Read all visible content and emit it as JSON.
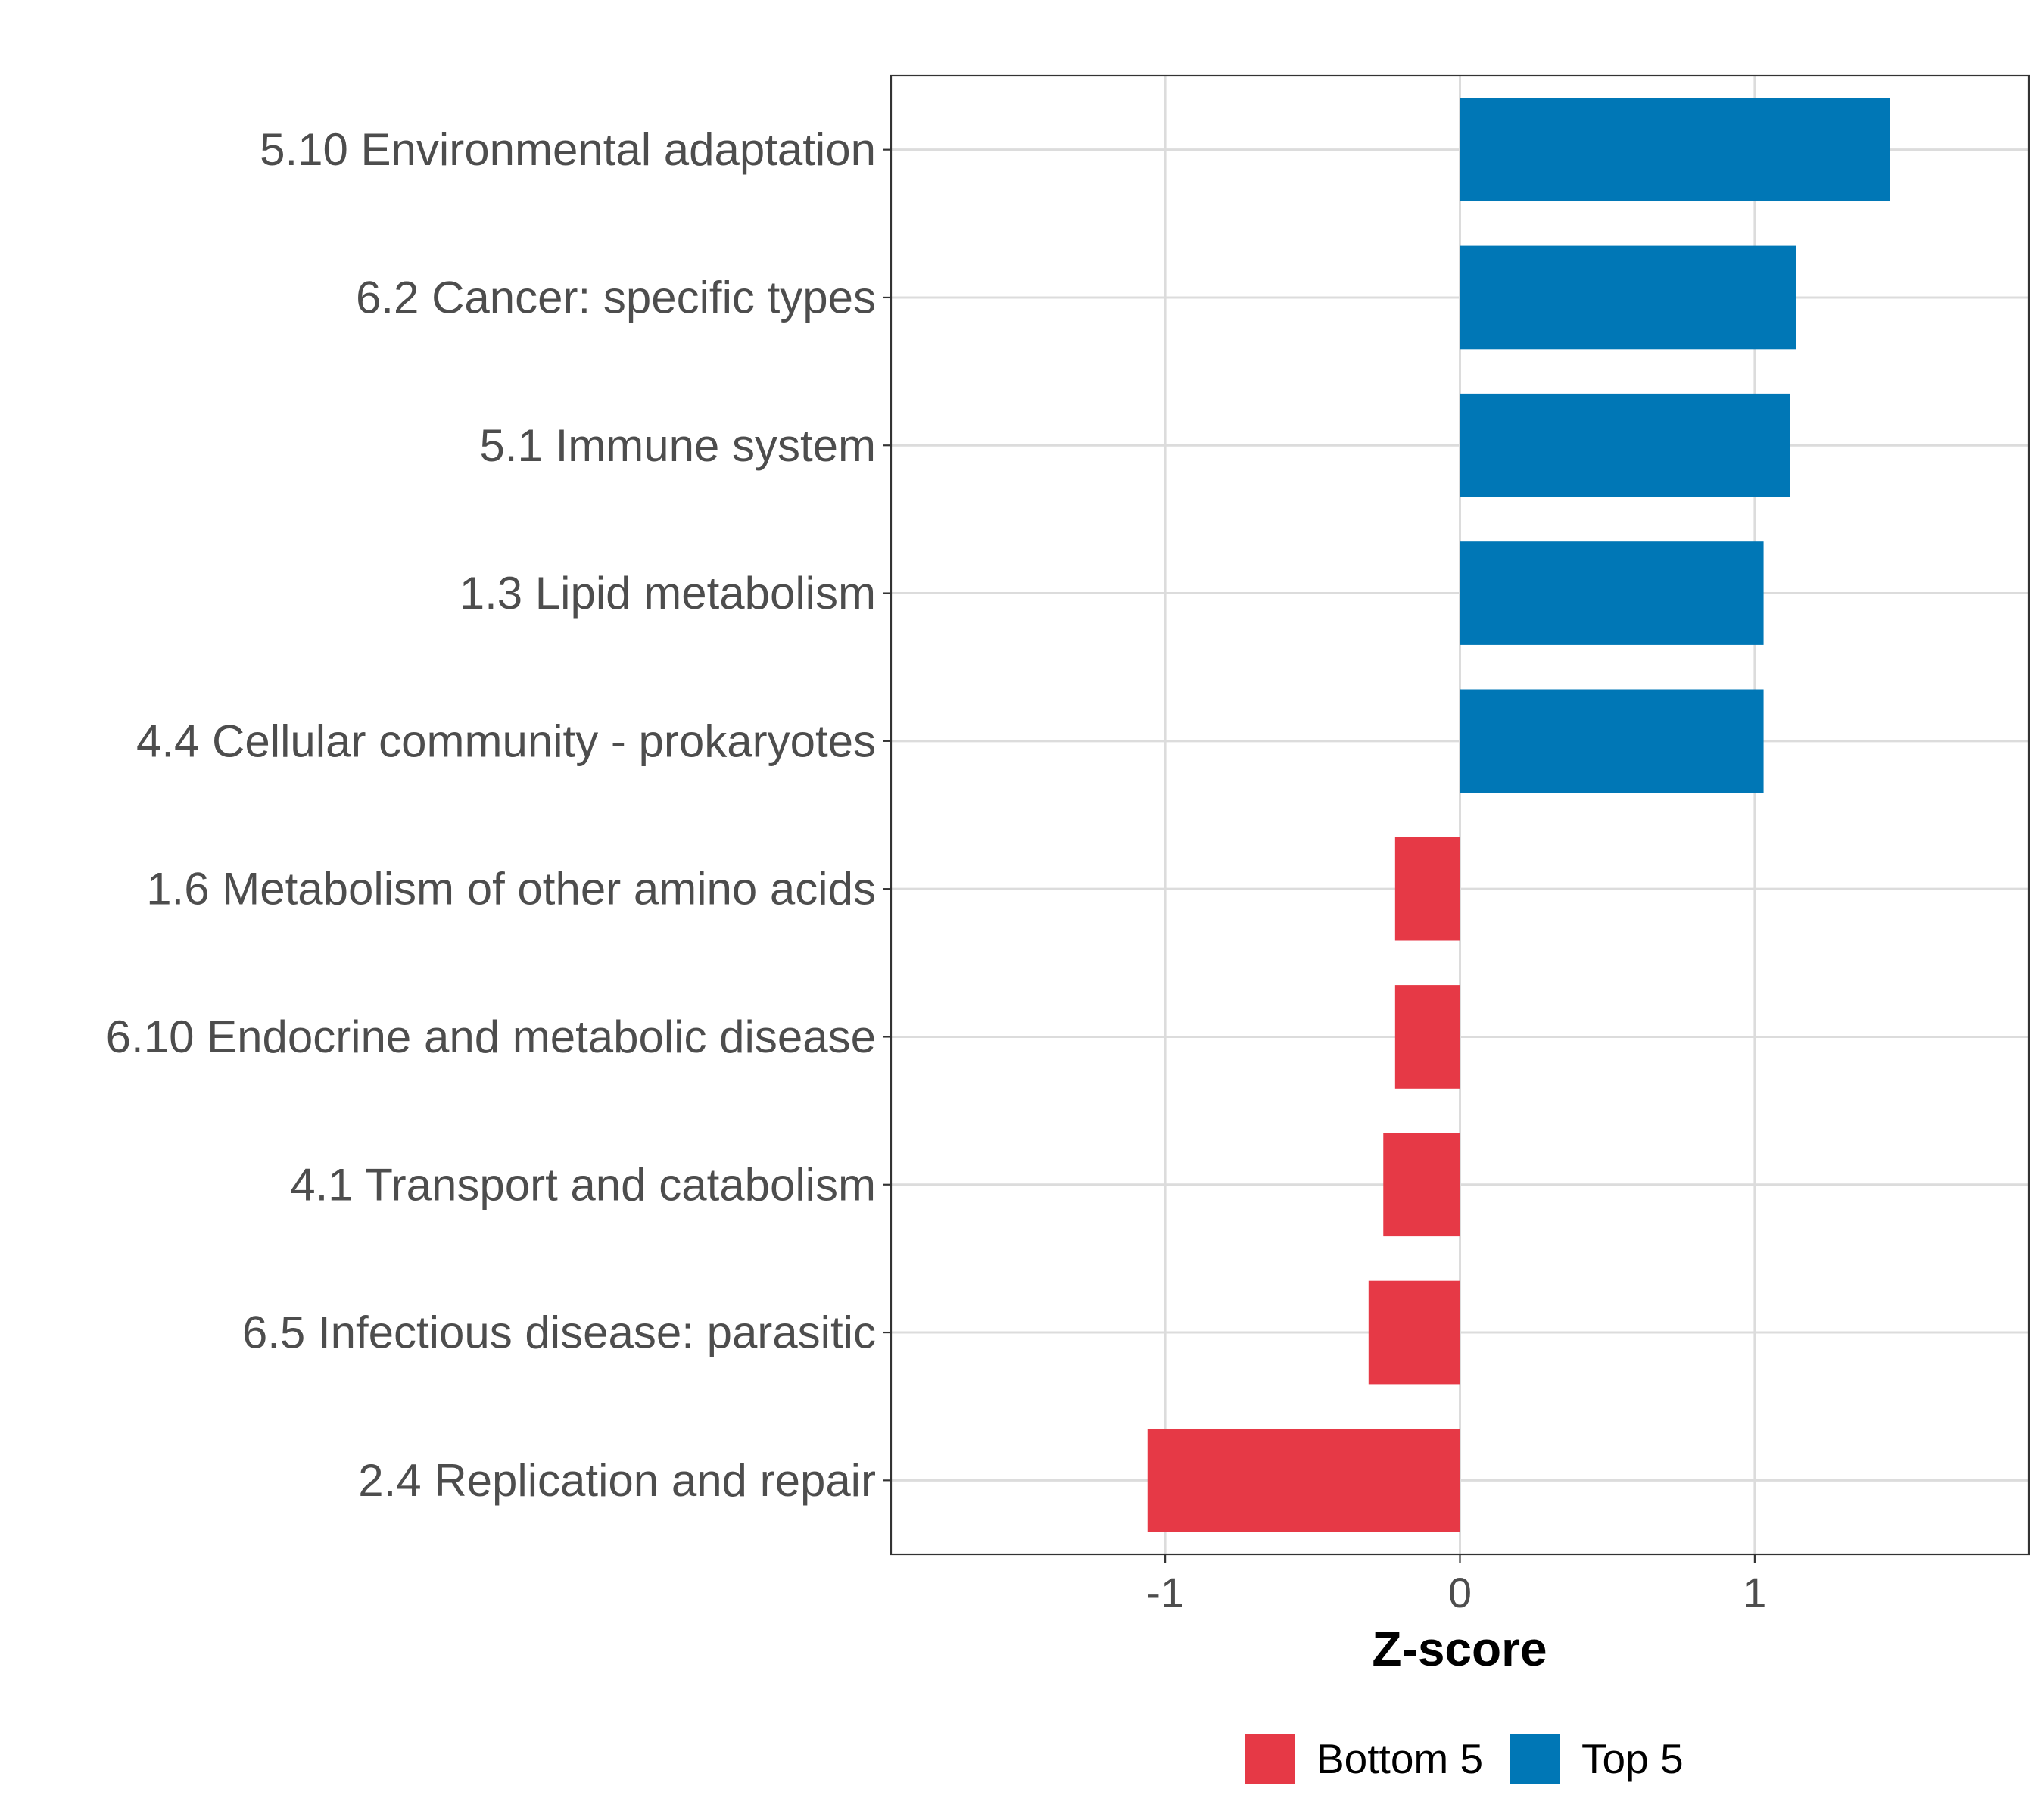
{
  "chart_data": {
    "type": "bar",
    "orientation": "horizontal",
    "title": "",
    "xlabel": "Z-score",
    "ylabel": "",
    "xlim": [
      -1.93,
      1.93
    ],
    "xticks": [
      -1,
      0,
      1
    ],
    "xtick_labels": [
      "-1",
      "0",
      "1"
    ],
    "grid": true,
    "categories": [
      "5.10 Environmental adaptation",
      "6.2 Cancer: specific types",
      "5.1 Immune system",
      "1.3 Lipid metabolism",
      "4.4 Cellular community - prokaryotes",
      "1.6 Metabolism of other amino acids",
      "6.10 Endocrine and metabolic disease",
      "4.1 Transport and catabolism",
      "6.5 Infectious disease: parasitic",
      "2.4 Replication and repair"
    ],
    "values": [
      1.46,
      1.14,
      1.12,
      1.03,
      1.03,
      -0.22,
      -0.22,
      -0.26,
      -0.31,
      -1.06
    ],
    "groups": [
      "Top 5",
      "Top 5",
      "Top 5",
      "Top 5",
      "Top 5",
      "Bottom 5",
      "Bottom 5",
      "Bottom 5",
      "Bottom 5",
      "Bottom 5"
    ],
    "legend": {
      "position": "bottom",
      "entries": [
        {
          "label": "Bottom 5",
          "color": "#e63946"
        },
        {
          "label": "Top 5",
          "color": "#0077b6"
        }
      ]
    }
  }
}
